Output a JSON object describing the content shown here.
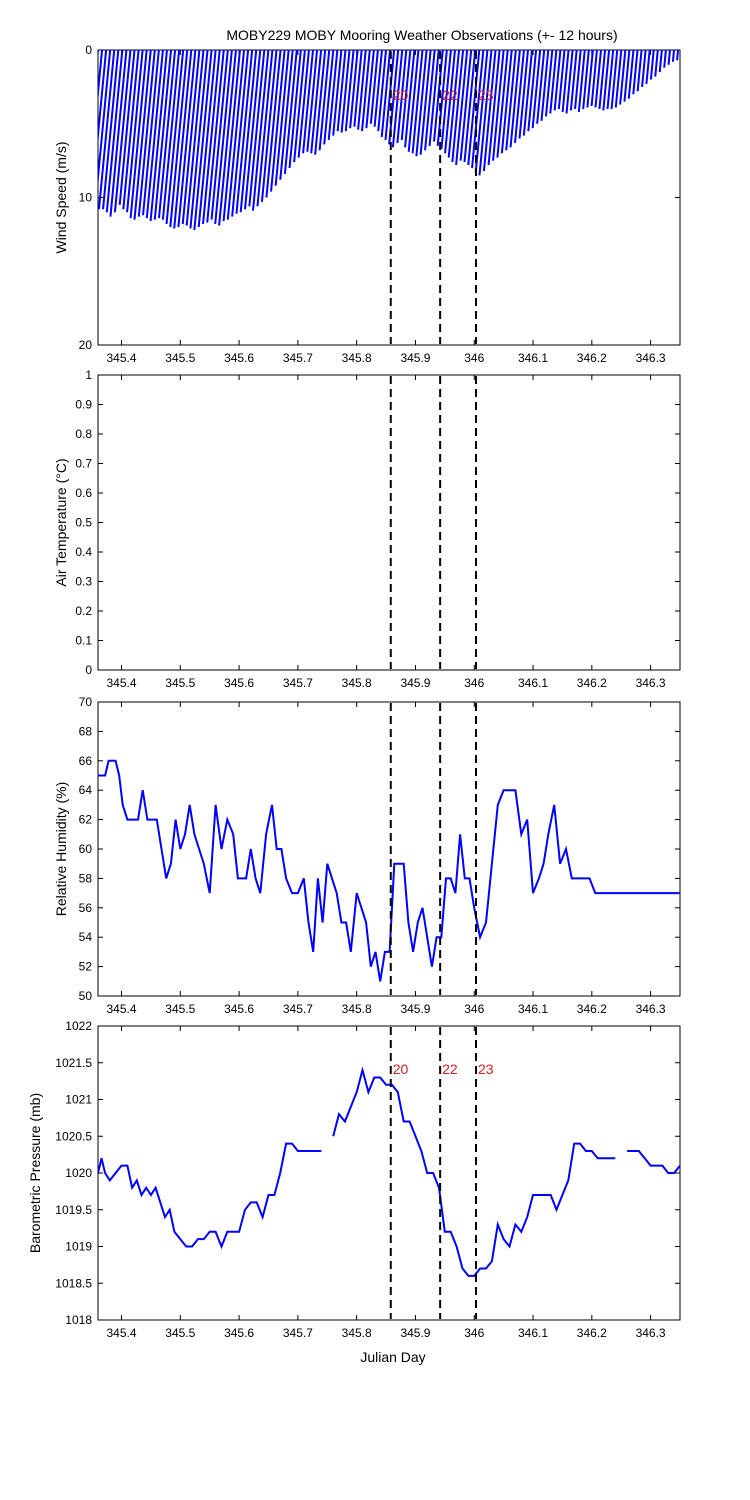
{
  "figure": {
    "title": "MOBY229 MOBY Mooring Weather Observations (+- 12 hours)",
    "xlabel": "Julian Day"
  },
  "chart_data": [
    {
      "type": "line",
      "variant": "wind-stick",
      "title": "MOBY229 MOBY Mooring Weather Observations (+- 12 hours)",
      "xlabel": "",
      "ylabel": "Wind Speed (m/s)",
      "xlim": [
        345.36,
        346.35
      ],
      "ylim": [
        0,
        20
      ],
      "y_reversed": true,
      "y_ticks": [
        0,
        10,
        20
      ],
      "x_ticks": [
        345.4,
        345.5,
        345.6,
        345.7,
        345.8,
        345.9,
        346,
        346.1,
        346.2,
        346.3
      ],
      "x_tick_labels": [
        "345.4",
        "345.5",
        "345.6",
        "345.7",
        "345.8",
        "345.9",
        "346",
        "346.1",
        "346.2",
        "346.3"
      ],
      "markers": [
        {
          "x": 345.858,
          "label": "20"
        },
        {
          "x": 345.942,
          "label": "22"
        },
        {
          "x": 346.003,
          "label": "23"
        }
      ],
      "series": [
        {
          "color": "#0000ff",
          "x_start": 345.36,
          "x_step": 0.0069,
          "speed": [
            9.5,
            9.8,
            10.2,
            10.5,
            10.8,
            10.8,
            11.0,
            11.3,
            11.0,
            10.5,
            10.8,
            11.0,
            11.4,
            11.5,
            11.3,
            11.2,
            11.4,
            11.6,
            11.5,
            11.4,
            11.5,
            11.8,
            12.0,
            12.1,
            12.0,
            11.8,
            11.9,
            12.1,
            12.2,
            12.0,
            11.8,
            11.7,
            11.5,
            11.8,
            11.9,
            11.6,
            11.5,
            11.3,
            11.1,
            11.0,
            10.8,
            10.6,
            10.9,
            10.6,
            10.3,
            10.0,
            9.6,
            9.2,
            8.8,
            8.4,
            8.0,
            7.6,
            7.3,
            7.0,
            6.9,
            7.0,
            7.1,
            6.8,
            6.4,
            6.1,
            5.8,
            5.5,
            5.6,
            5.5,
            5.3,
            5.2,
            5.4,
            5.5,
            5.3,
            5.0,
            5.2,
            5.5,
            5.9,
            6.1,
            6.4,
            6.6,
            6.3,
            6.1,
            6.6,
            6.9,
            7.0,
            7.2,
            7.1,
            6.8,
            6.5,
            6.2,
            6.5,
            6.7,
            7.0,
            7.3,
            7.6,
            7.8,
            7.5,
            7.6,
            7.8,
            8.0,
            8.3,
            8.5,
            8.2,
            7.8,
            7.5,
            7.3,
            7.0,
            6.8,
            6.6,
            6.3,
            6.0,
            5.8,
            5.5,
            5.3,
            5.0,
            4.8,
            4.5,
            4.3,
            4.1,
            4.0,
            4.2,
            4.3,
            4.1,
            4.0,
            4.2,
            4.0,
            3.9,
            3.8,
            3.9,
            4.0,
            4.1,
            4.0,
            4.0,
            3.9,
            3.7,
            3.5,
            3.3,
            3.0,
            2.8,
            2.5,
            2.3,
            2.0,
            1.8,
            1.5,
            1.2,
            1.0,
            0.8,
            0.7
          ],
          "direction_deg": [
            70,
            70,
            70,
            70,
            70,
            70,
            70,
            70,
            70,
            70,
            70,
            70,
            70,
            70,
            70,
            70,
            70,
            70,
            70,
            70,
            70,
            70,
            70,
            70,
            70,
            70,
            70,
            70,
            70,
            70,
            70,
            70,
            70,
            70,
            70,
            70,
            70,
            70,
            70,
            70,
            70,
            70,
            70,
            70,
            70,
            70,
            70,
            70,
            70,
            70,
            70,
            70,
            70,
            70,
            70,
            70,
            70,
            70,
            70,
            70,
            70,
            70,
            70,
            70,
            70,
            70,
            70,
            70,
            70,
            70,
            70,
            70,
            70,
            70,
            70,
            70,
            70,
            70,
            70,
            70,
            70,
            70,
            70,
            70,
            70,
            70,
            70,
            70,
            70,
            70,
            70,
            70,
            70,
            70,
            70,
            70,
            70,
            70,
            70,
            70,
            70,
            70,
            70,
            70,
            70,
            70,
            70,
            70,
            70,
            70,
            70,
            70,
            70,
            70,
            70,
            70,
            70,
            70,
            70,
            70,
            70,
            70,
            70,
            70,
            70,
            70,
            70,
            70,
            70,
            70,
            70,
            70,
            70,
            70,
            70,
            70,
            70,
            70,
            70,
            70,
            70,
            70,
            70,
            70,
            70
          ]
        }
      ]
    },
    {
      "type": "line",
      "xlabel": "",
      "ylabel": "Air Temperature (°C)",
      "xlim": [
        345.36,
        346.35
      ],
      "ylim": [
        0,
        1
      ],
      "y_ticks": [
        0,
        0.1,
        0.2,
        0.3,
        0.4,
        0.5,
        0.6,
        0.7,
        0.8,
        0.9,
        1
      ],
      "y_tick_labels": [
        "0",
        "0.1",
        "0.2",
        "0.3",
        "0.4",
        "0.5",
        "0.6",
        "0.7",
        "0.8",
        "0.9",
        "1"
      ],
      "x_ticks": [
        345.4,
        345.5,
        345.6,
        345.7,
        345.8,
        345.9,
        346,
        346.1,
        346.2,
        346.3
      ],
      "x_tick_labels": [
        "345.4",
        "345.5",
        "345.6",
        "345.7",
        "345.8",
        "345.9",
        "346",
        "346.1",
        "346.2",
        "346.3"
      ],
      "markers": [
        {
          "x": 345.858
        },
        {
          "x": 345.942
        },
        {
          "x": 346.003
        }
      ],
      "series": []
    },
    {
      "type": "line",
      "xlabel": "",
      "ylabel": "Relative Humidity (%)",
      "xlim": [
        345.36,
        346.35
      ],
      "ylim": [
        50,
        70
      ],
      "y_ticks": [
        50,
        52,
        54,
        56,
        58,
        60,
        62,
        64,
        66,
        68,
        70
      ],
      "y_tick_labels": [
        "50",
        "52",
        "54",
        "56",
        "58",
        "60",
        "62",
        "64",
        "66",
        "68",
        "70"
      ],
      "x_ticks": [
        345.4,
        345.5,
        345.6,
        345.7,
        345.8,
        345.9,
        346,
        346.1,
        346.2,
        346.3
      ],
      "x_tick_labels": [
        "345.4",
        "345.5",
        "345.6",
        "345.7",
        "345.8",
        "345.9",
        "346",
        "346.1",
        "346.2",
        "346.3"
      ],
      "markers": [
        {
          "x": 345.858
        },
        {
          "x": 345.942
        },
        {
          "x": 346.003
        }
      ],
      "series": [
        {
          "color": "#0000ff",
          "x": [
            345.36,
            345.372,
            345.378,
            345.384,
            345.39,
            345.396,
            345.402,
            345.41,
            345.42,
            345.428,
            345.436,
            345.444,
            345.452,
            345.46,
            345.468,
            345.476,
            345.484,
            345.492,
            345.5,
            345.508,
            345.516,
            345.524,
            345.532,
            345.54,
            345.55,
            345.56,
            345.57,
            345.58,
            345.59,
            345.598,
            345.605,
            345.612,
            345.62,
            345.628,
            345.636,
            345.646,
            345.656,
            345.664,
            345.672,
            345.68,
            345.69,
            345.7,
            345.71,
            345.718,
            345.726,
            345.734,
            345.742,
            345.75,
            345.758,
            345.766,
            345.774,
            345.782,
            345.79,
            345.8,
            345.808,
            345.816,
            345.824,
            345.832,
            345.84,
            345.848,
            345.856,
            345.864,
            345.872,
            345.88,
            345.888,
            345.896,
            345.904,
            345.912,
            345.92,
            345.928,
            345.936,
            345.944,
            345.952,
            345.96,
            345.968,
            345.976,
            345.984,
            345.992,
            346.0,
            346.01,
            346.02,
            346.03,
            346.04,
            346.05,
            346.06,
            346.07,
            346.08,
            346.09,
            346.1,
            346.11,
            346.118,
            346.126,
            346.136,
            346.146,
            346.156,
            346.166,
            346.176,
            346.186,
            346.196,
            346.206,
            346.216,
            346.226,
            346.236,
            346.246,
            346.256,
            346.266,
            346.276,
            346.286,
            346.296,
            346.306,
            346.316,
            346.326,
            346.336,
            346.344,
            346.35
          ],
          "values": [
            65,
            65,
            66,
            66,
            66,
            65,
            63,
            62,
            62,
            62,
            64,
            62,
            62,
            62,
            60,
            58,
            59,
            62,
            60,
            61,
            63,
            61,
            60,
            59,
            57,
            63,
            60,
            62,
            61,
            58,
            58,
            58,
            60,
            58,
            57,
            61,
            63,
            60,
            60,
            58,
            57,
            57,
            58,
            55,
            53,
            58,
            55,
            59,
            58,
            57,
            55,
            55,
            53,
            57,
            56,
            55,
            52,
            53,
            51,
            53,
            53,
            59,
            59,
            59,
            55,
            53,
            55,
            56,
            54,
            52,
            54,
            54,
            58,
            58,
            57,
            61,
            58,
            58,
            56,
            54,
            55,
            59,
            63,
            64,
            64,
            64,
            61,
            62,
            57,
            58,
            59,
            61,
            63,
            59,
            60,
            58,
            58,
            58,
            58,
            57,
            57,
            57,
            57,
            57,
            57,
            57,
            57,
            57,
            57,
            57,
            57,
            57,
            57,
            57,
            57
          ]
        }
      ]
    },
    {
      "type": "line",
      "xlabel": "Julian Day",
      "ylabel": "Barometric Pressure (mb)",
      "xlim": [
        345.36,
        346.35
      ],
      "ylim": [
        1018,
        1022
      ],
      "y_ticks": [
        1018,
        1018.5,
        1019,
        1019.5,
        1020,
        1020.5,
        1021,
        1021.5,
        1022
      ],
      "y_tick_labels": [
        "1018",
        "1018.5",
        "1019",
        "1019.5",
        "1020",
        "1020.5",
        "1021",
        "1021.5",
        "1022"
      ],
      "x_ticks": [
        345.4,
        345.5,
        345.6,
        345.7,
        345.8,
        345.9,
        346,
        346.1,
        346.2,
        346.3
      ],
      "x_tick_labels": [
        "345.4",
        "345.5",
        "345.6",
        "345.7",
        "345.8",
        "345.9",
        "346",
        "346.1",
        "346.2",
        "346.3"
      ],
      "markers": [
        {
          "x": 345.858,
          "label": "20"
        },
        {
          "x": 345.942,
          "label": "22"
        },
        {
          "x": 346.003,
          "label": "23"
        }
      ],
      "series": [
        {
          "color": "#0000ff",
          "segments": [
            {
              "x": [
                345.36,
                345.366,
                345.372,
                345.38,
                345.39,
                345.4,
                345.41,
                345.418,
                345.426,
                345.434,
                345.442,
                345.45,
                345.458,
                345.466,
                345.474,
                345.482,
                345.49,
                345.5,
                345.51,
                345.52,
                345.53,
                345.54,
                345.55,
                345.56,
                345.57,
                345.58,
                345.59,
                345.6,
                345.61,
                345.62,
                345.63,
                345.64,
                345.65,
                345.66,
                345.67,
                345.68,
                345.69,
                345.7,
                345.71,
                345.72,
                345.73,
                345.74
              ],
              "values": [
                1020.0,
                1020.2,
                1020.0,
                1019.9,
                1020.0,
                1020.1,
                1020.1,
                1019.8,
                1019.9,
                1019.7,
                1019.8,
                1019.7,
                1019.8,
                1019.6,
                1019.4,
                1019.5,
                1019.2,
                1019.1,
                1019.0,
                1019.0,
                1019.1,
                1019.1,
                1019.2,
                1019.2,
                1019.0,
                1019.2,
                1019.2,
                1019.2,
                1019.5,
                1019.6,
                1019.6,
                1019.4,
                1019.7,
                1019.7,
                1020.0,
                1020.4,
                1020.4,
                1020.3,
                1020.3,
                1020.3,
                1020.3,
                1020.3
              ]
            },
            {
              "x": [
                345.76,
                345.77,
                345.78,
                345.79,
                345.8,
                345.81,
                345.82,
                345.83,
                345.84,
                345.85,
                345.86,
                345.87,
                345.88,
                345.89,
                345.9,
                345.91,
                345.92,
                345.93,
                345.94,
                345.95,
                345.96,
                345.97,
                345.98,
                345.99,
                346.0,
                346.01,
                346.02,
                346.03,
                346.04,
                346.05,
                346.06,
                346.07,
                346.08,
                346.09,
                346.1,
                346.11,
                346.12,
                346.13,
                346.14,
                346.15,
                346.16,
                346.17,
                346.18,
                346.19,
                346.2,
                346.21,
                346.22,
                346.23,
                346.24
              ],
              "values": [
                1020.5,
                1020.8,
                1020.7,
                1020.9,
                1021.1,
                1021.4,
                1021.1,
                1021.3,
                1021.3,
                1021.2,
                1021.2,
                1021.1,
                1020.7,
                1020.7,
                1020.5,
                1020.3,
                1020.0,
                1020.0,
                1019.8,
                1019.2,
                1019.2,
                1019.0,
                1018.7,
                1018.6,
                1018.6,
                1018.7,
                1018.7,
                1018.8,
                1019.3,
                1019.1,
                1019.0,
                1019.3,
                1019.2,
                1019.4,
                1019.7,
                1019.7,
                1019.7,
                1019.7,
                1019.5,
                1019.7,
                1019.9,
                1020.4,
                1020.4,
                1020.3,
                1020.3,
                1020.2,
                1020.2,
                1020.2,
                1020.2
              ]
            },
            {
              "x": [
                346.26,
                346.27,
                346.28,
                346.29,
                346.3,
                346.31,
                346.32,
                346.33,
                346.34,
                346.35
              ],
              "values": [
                1020.3,
                1020.3,
                1020.3,
                1020.2,
                1020.1,
                1020.1,
                1020.1,
                1020.0,
                1020.0,
                1020.1
              ]
            }
          ]
        }
      ]
    }
  ]
}
